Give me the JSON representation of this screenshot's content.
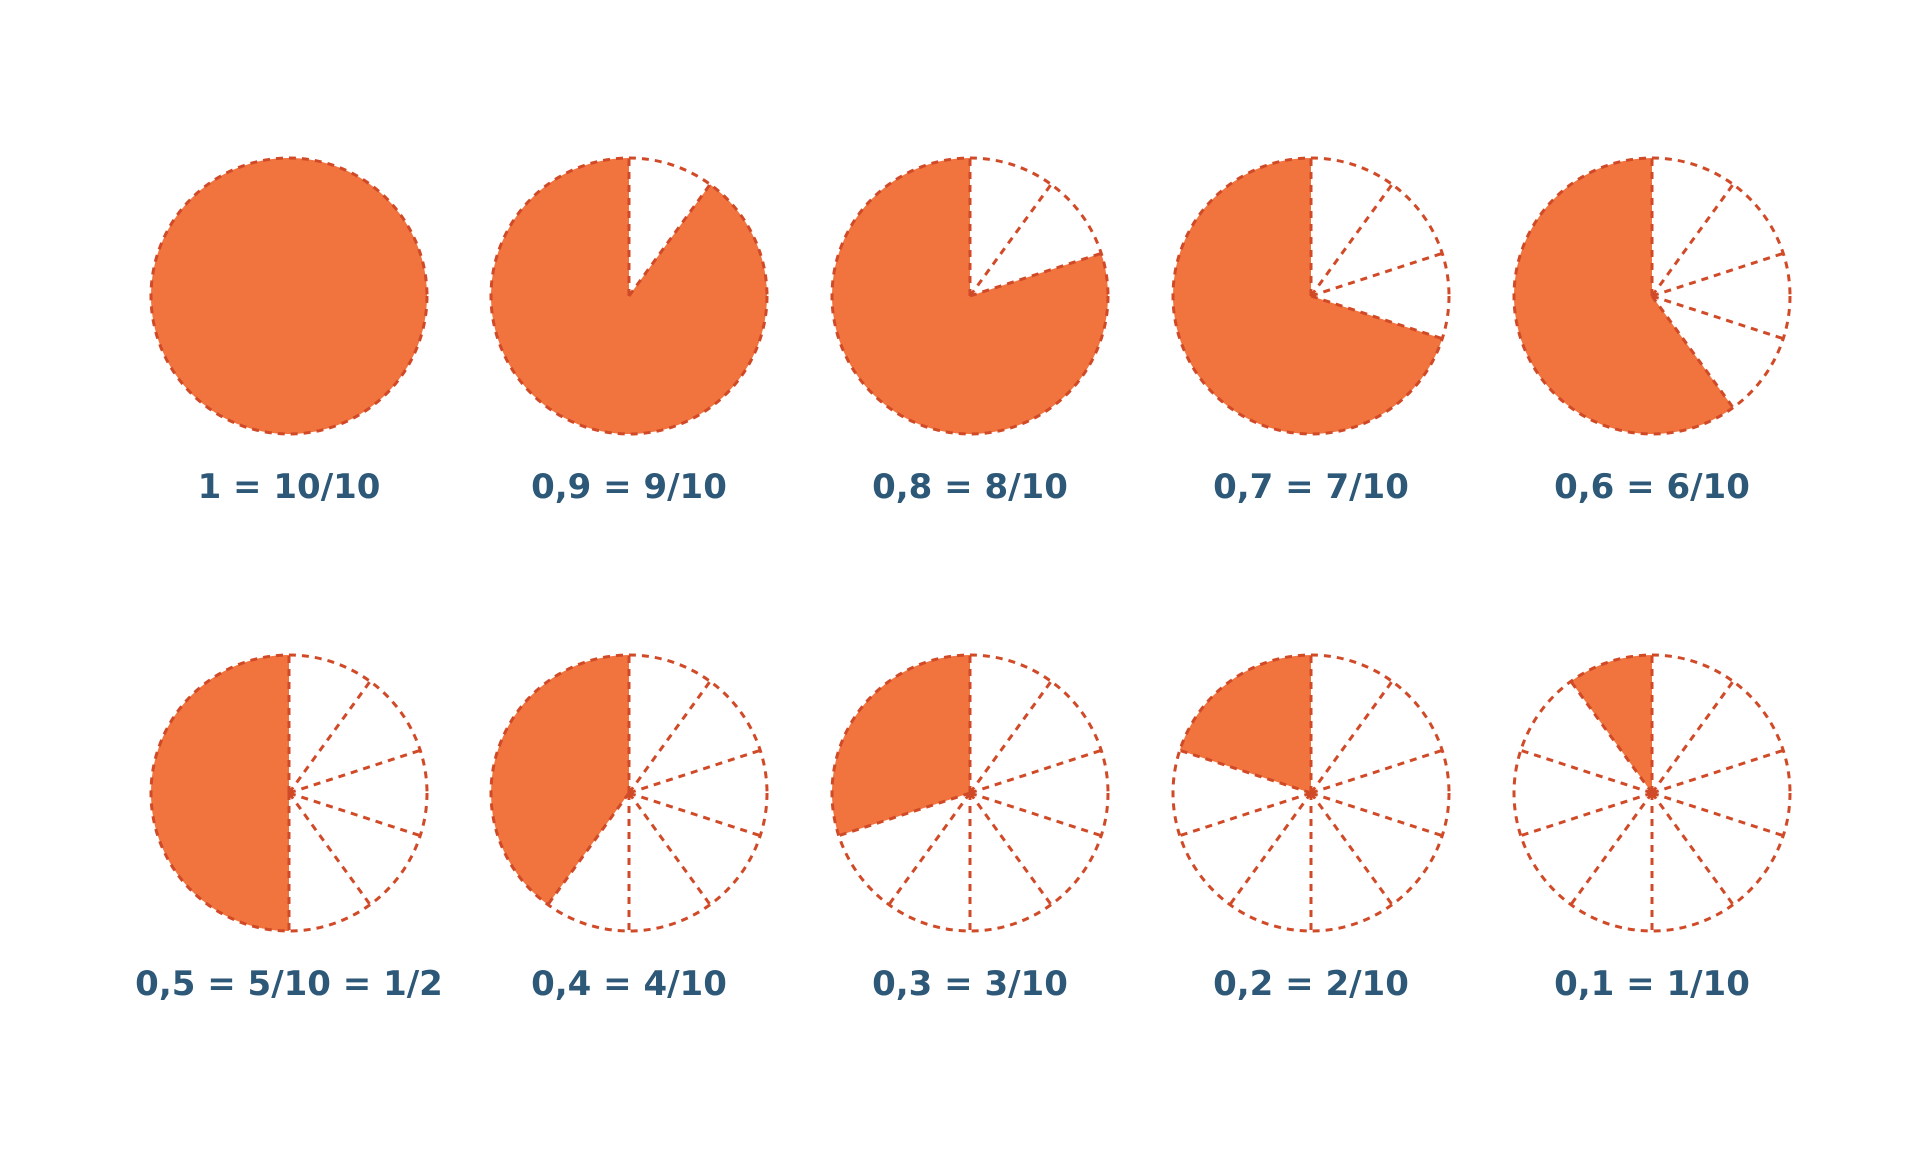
{
  "colors": {
    "fill": "#f1733d",
    "outline": "#d14a28",
    "label": "#2d5878",
    "background": "#ffffff"
  },
  "divisions": 10,
  "pies": [
    {
      "filled": 10,
      "label": "1 = 10/10"
    },
    {
      "filled": 9,
      "label": "0,9 = 9/10"
    },
    {
      "filled": 8,
      "label": "0,8 = 8/10"
    },
    {
      "filled": 7,
      "label": "0,7 = 7/10"
    },
    {
      "filled": 6,
      "label": "0,6 = 6/10"
    },
    {
      "filled": 5,
      "label": "0,5 = 5/10 = 1/2"
    },
    {
      "filled": 4,
      "label": "0,4 = 4/10"
    },
    {
      "filled": 3,
      "label": "0,3 = 3/10"
    },
    {
      "filled": 2,
      "label": "0,2 = 2/10"
    },
    {
      "filled": 1,
      "label": "0,1 = 1/10"
    }
  ]
}
